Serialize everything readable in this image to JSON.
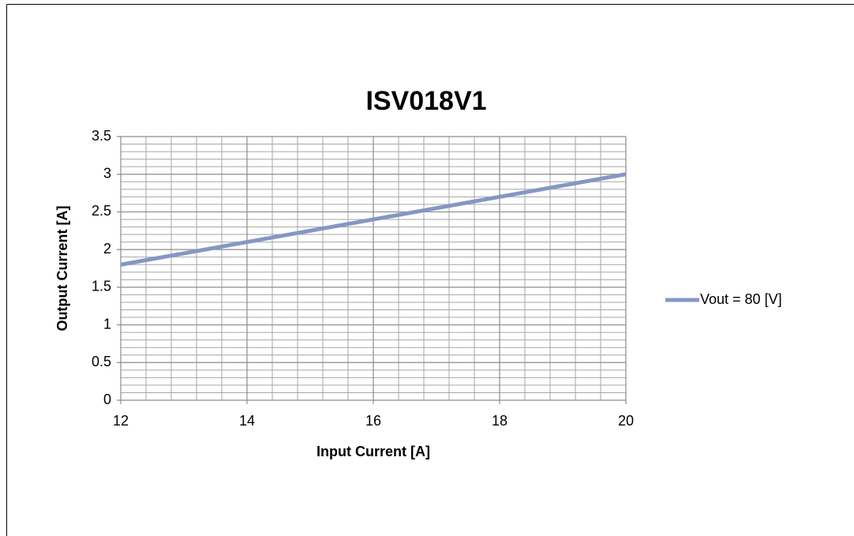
{
  "chart_data": {
    "type": "line",
    "title": "ISV018V1",
    "x_label": "Input Current [A]",
    "y_label": "Output Current [A]",
    "x": [
      12,
      14,
      16,
      18,
      20
    ],
    "series": [
      {
        "name": "Vout = 80 [V]",
        "color": "#8497c4",
        "values": [
          1.8,
          2.1,
          2.4,
          2.7,
          3.0
        ]
      }
    ],
    "xlim": [
      12,
      20
    ],
    "xticks": [
      12,
      14,
      16,
      18,
      20
    ],
    "ylim": [
      0,
      3.5
    ],
    "yticks": [
      0,
      0.5,
      1,
      1.5,
      2,
      2.5,
      3,
      3.5
    ],
    "grid": true,
    "legend": "right"
  }
}
